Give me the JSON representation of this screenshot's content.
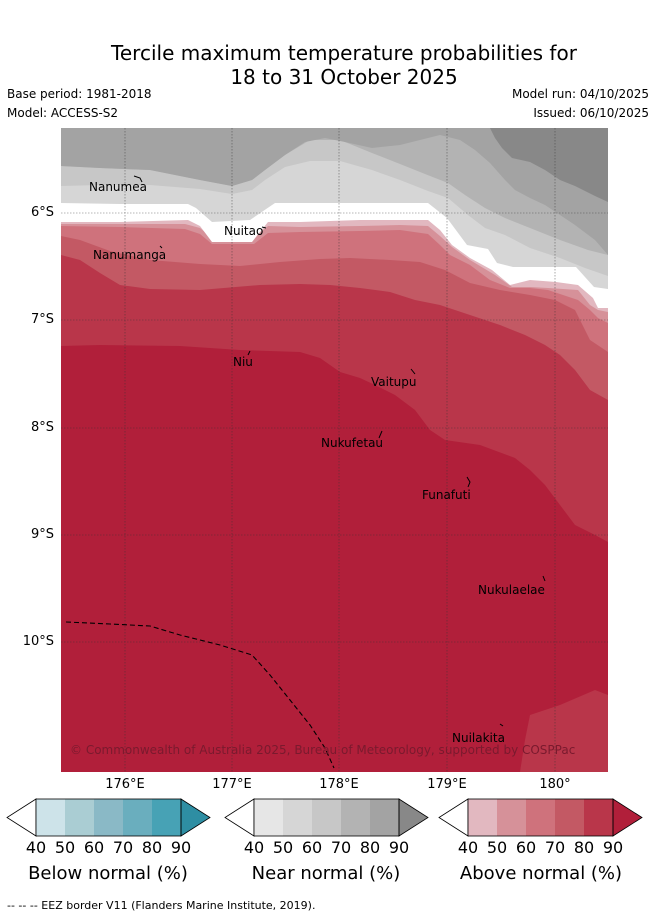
{
  "title": {
    "line1": "Tercile maximum temperature probabilities for",
    "line2": "18 to 31 October 2025"
  },
  "meta": {
    "base_period": "Base period: 1981-2018",
    "model": "Model: ACCESS-S2",
    "model_run": "Model run: 04/10/2025",
    "issued": "Issued: 06/10/2025"
  },
  "map": {
    "lat_ticks": [
      "6°S",
      "7°S",
      "8°S",
      "9°S",
      "10°S"
    ],
    "lon_ticks": [
      "176°E",
      "177°E",
      "178°E",
      "179°E",
      "180°"
    ],
    "islands": [
      {
        "name": "Nanumea"
      },
      {
        "name": "Nuitao"
      },
      {
        "name": "Nanumanga"
      },
      {
        "name": "Niu"
      },
      {
        "name": "Vaitupu"
      },
      {
        "name": "Nukufetau"
      },
      {
        "name": "Funafuti"
      },
      {
        "name": "Nukulaelae"
      },
      {
        "name": "Nuilakita"
      }
    ],
    "copyright": "© Commonwealth of Australia 2025, Bureau of Meteorology, supported by COSPPac",
    "colors": {
      "near_50": "#d6d6d6",
      "near_60": "#c7c7c7",
      "near_70": "#b3b3b3",
      "near_80": "#a3a3a3",
      "near_90": "#888888",
      "above_40": "#e2b8c0",
      "above_50": "#d69199",
      "above_60": "#cf727c",
      "above_70": "#c35964",
      "above_80": "#b9364a",
      "above_90": "#b11f3a"
    }
  },
  "colorbars": {
    "ticks": [
      "40",
      "50",
      "60",
      "70",
      "80",
      "90"
    ],
    "below": {
      "label": "Below normal (%)",
      "colors": [
        "#ffffff",
        "#cde3e9",
        "#aacdd3",
        "#8ab9c6",
        "#6aaebe",
        "#47a2b5",
        "#2e8ea3"
      ]
    },
    "near": {
      "label": "Near normal (%)",
      "colors": [
        "#ffffff",
        "#e6e6e6",
        "#d6d6d6",
        "#c7c7c7",
        "#b3b3b3",
        "#a3a3a3",
        "#888888"
      ]
    },
    "above": {
      "label": "Above normal (%)",
      "colors": [
        "#ffffff",
        "#e2b8c0",
        "#d69199",
        "#cf727c",
        "#c35964",
        "#b9364a",
        "#b11f3a"
      ]
    }
  },
  "footer": "--  --  -- EEZ border V11 (Flanders Marine Institute, 2019)."
}
